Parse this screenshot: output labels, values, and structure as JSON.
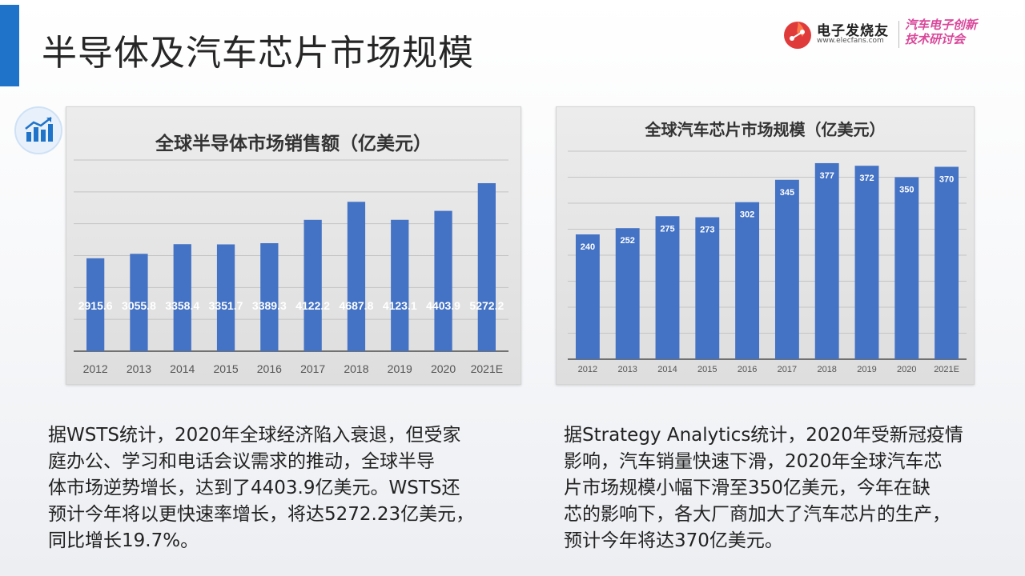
{
  "page": {
    "title": "半导体及汽车芯片市场规模"
  },
  "logo": {
    "name": "电子发烧友",
    "url": "www.elecfans.com",
    "event_line1": "汽车电子创新",
    "event_line2": "技术研讨会"
  },
  "colors": {
    "accent": "#1f73c9",
    "bar": "#4472c4",
    "event": "#d9479a"
  },
  "icons": {
    "chart_badge": "growth-chart-icon",
    "logo_mark": "circuit-flame-icon"
  },
  "chart_data": [
    {
      "type": "bar",
      "title": "全球半导体市场销售额（亿美元）",
      "categories": [
        "2012",
        "2013",
        "2014",
        "2015",
        "2016",
        "2017",
        "2018",
        "2019",
        "2020",
        "2021E"
      ],
      "values": [
        2915.6,
        3055.8,
        3358.4,
        3351.7,
        3389.3,
        4122.2,
        4687.8,
        4123.1,
        4403.9,
        5272.2
      ],
      "data_labels": [
        "2915.6",
        "3055.8",
        "3358.4",
        "3351.7",
        "3389.3",
        "4122.2",
        "4687.8",
        "4123.1",
        "4403.9",
        "5272.2"
      ],
      "ylim": [
        0,
        6000
      ],
      "grid": true,
      "legend": "none",
      "xlabel": "",
      "ylabel": ""
    },
    {
      "type": "bar",
      "title": "全球汽车芯片市场规模（亿美元）",
      "categories": [
        "2012",
        "2013",
        "2014",
        "2015",
        "2016",
        "2017",
        "2018",
        "2019",
        "2020",
        "2021E"
      ],
      "values": [
        240,
        252,
        275,
        273,
        302,
        345,
        377,
        372,
        350,
        370
      ],
      "data_labels": [
        "240",
        "252",
        "275",
        "273",
        "302",
        "345",
        "377",
        "372",
        "350",
        "370"
      ],
      "ylim": [
        0,
        400
      ],
      "grid": true,
      "legend": "none",
      "xlabel": "",
      "ylabel": ""
    }
  ],
  "descriptions": {
    "left": [
      "据WSTS统计，2020年全球经济陷入衰退，但受家",
      "庭办公、学习和电话会议需求的推动，全球半导",
      "体市场逆势增长，达到了4403.9亿美元。WSTS还",
      "预计今年将以更快速率增长，将达5272.23亿美元，",
      "同比增长19.7%。"
    ],
    "right": [
      "据Strategy Analytics统计，2020年受新冠疫情",
      "影响，汽车销量快速下滑，2020年全球汽车芯",
      "片市场规模小幅下滑至350亿美元，今年在缺",
      "芯的影响下，各大厂商加大了汽车芯片的生产，",
      "预计今年将达370亿美元。"
    ]
  }
}
